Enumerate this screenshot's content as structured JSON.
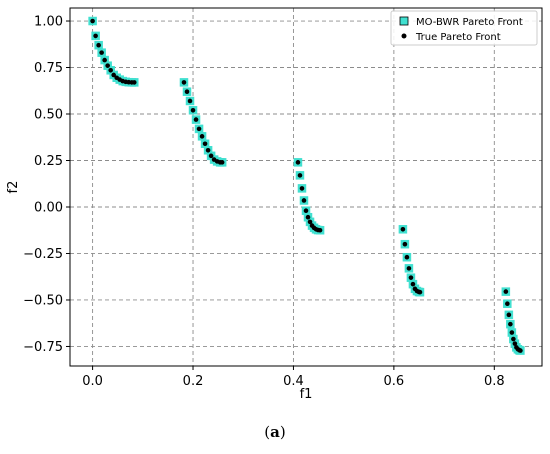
{
  "caption": {
    "open": "(",
    "letter": "a",
    "close": ")"
  },
  "chart_data": {
    "type": "scatter",
    "xlabel": "f1",
    "ylabel": "f2",
    "xlim": [
      -0.045,
      0.895
    ],
    "ylim": [
      -0.855,
      1.07
    ],
    "xticks": [
      0.0,
      0.2,
      0.4,
      0.6,
      0.8
    ],
    "xtick_labels": [
      "0.0",
      "0.2",
      "0.4",
      "0.6",
      "0.8"
    ],
    "yticks": [
      1.0,
      0.75,
      0.5,
      0.25,
      0.0,
      -0.25,
      -0.5,
      -0.75
    ],
    "ytick_labels": [
      "1.00",
      "0.75",
      "0.50",
      "0.25",
      "0.00",
      "−0.25",
      "−0.50",
      "−0.75"
    ],
    "grid": true,
    "legend_position": "top-right",
    "colors": {
      "mo_bwr": "#40e0d0",
      "true_front": "#000000"
    },
    "series": [
      {
        "name": "MO-BWR Pareto Front",
        "marker": "square",
        "color": "#40e0d0",
        "x": [
          0.0,
          0.006,
          0.012,
          0.018,
          0.024,
          0.03,
          0.036,
          0.042,
          0.048,
          0.054,
          0.06,
          0.066,
          0.072,
          0.078,
          0.083,
          0.182,
          0.188,
          0.194,
          0.2,
          0.206,
          0.212,
          0.218,
          0.224,
          0.23,
          0.236,
          0.242,
          0.248,
          0.254,
          0.258,
          0.409,
          0.413,
          0.417,
          0.421,
          0.425,
          0.429,
          0.433,
          0.437,
          0.441,
          0.445,
          0.449,
          0.453,
          0.618,
          0.622,
          0.626,
          0.63,
          0.634,
          0.638,
          0.642,
          0.646,
          0.65,
          0.652,
          0.823,
          0.826,
          0.829,
          0.832,
          0.835,
          0.838,
          0.841,
          0.844,
          0.847,
          0.85,
          0.852
        ],
        "y": [
          1.0,
          0.92,
          0.87,
          0.83,
          0.79,
          0.76,
          0.735,
          0.71,
          0.695,
          0.685,
          0.677,
          0.673,
          0.671,
          0.67,
          0.67,
          0.67,
          0.62,
          0.57,
          0.52,
          0.47,
          0.42,
          0.38,
          0.34,
          0.305,
          0.275,
          0.255,
          0.245,
          0.24,
          0.24,
          0.24,
          0.17,
          0.1,
          0.035,
          -0.02,
          -0.055,
          -0.08,
          -0.1,
          -0.112,
          -0.12,
          -0.124,
          -0.125,
          -0.12,
          -0.2,
          -0.27,
          -0.33,
          -0.38,
          -0.415,
          -0.44,
          -0.452,
          -0.457,
          -0.458,
          -0.455,
          -0.52,
          -0.58,
          -0.63,
          -0.675,
          -0.71,
          -0.735,
          -0.755,
          -0.765,
          -0.77,
          -0.772
        ]
      },
      {
        "name": "True Pareto Front",
        "marker": "dot",
        "color": "#000000",
        "x": [
          0.0,
          0.006,
          0.012,
          0.018,
          0.024,
          0.03,
          0.036,
          0.042,
          0.048,
          0.054,
          0.06,
          0.066,
          0.072,
          0.078,
          0.083,
          0.182,
          0.188,
          0.194,
          0.2,
          0.206,
          0.212,
          0.218,
          0.224,
          0.23,
          0.236,
          0.242,
          0.248,
          0.254,
          0.258,
          0.409,
          0.413,
          0.417,
          0.421,
          0.425,
          0.429,
          0.433,
          0.437,
          0.441,
          0.445,
          0.449,
          0.453,
          0.618,
          0.622,
          0.626,
          0.63,
          0.634,
          0.638,
          0.642,
          0.646,
          0.65,
          0.652,
          0.823,
          0.826,
          0.829,
          0.832,
          0.835,
          0.838,
          0.841,
          0.844,
          0.847,
          0.85,
          0.852
        ],
        "y": [
          1.0,
          0.92,
          0.87,
          0.83,
          0.79,
          0.76,
          0.735,
          0.71,
          0.695,
          0.685,
          0.677,
          0.673,
          0.671,
          0.67,
          0.67,
          0.67,
          0.62,
          0.57,
          0.52,
          0.47,
          0.42,
          0.38,
          0.34,
          0.305,
          0.275,
          0.255,
          0.245,
          0.24,
          0.24,
          0.24,
          0.17,
          0.1,
          0.035,
          -0.02,
          -0.055,
          -0.08,
          -0.1,
          -0.112,
          -0.12,
          -0.124,
          -0.125,
          -0.12,
          -0.2,
          -0.27,
          -0.33,
          -0.38,
          -0.415,
          -0.44,
          -0.452,
          -0.457,
          -0.458,
          -0.455,
          -0.52,
          -0.58,
          -0.63,
          -0.675,
          -0.71,
          -0.735,
          -0.755,
          -0.765,
          -0.77,
          -0.772
        ]
      }
    ]
  }
}
